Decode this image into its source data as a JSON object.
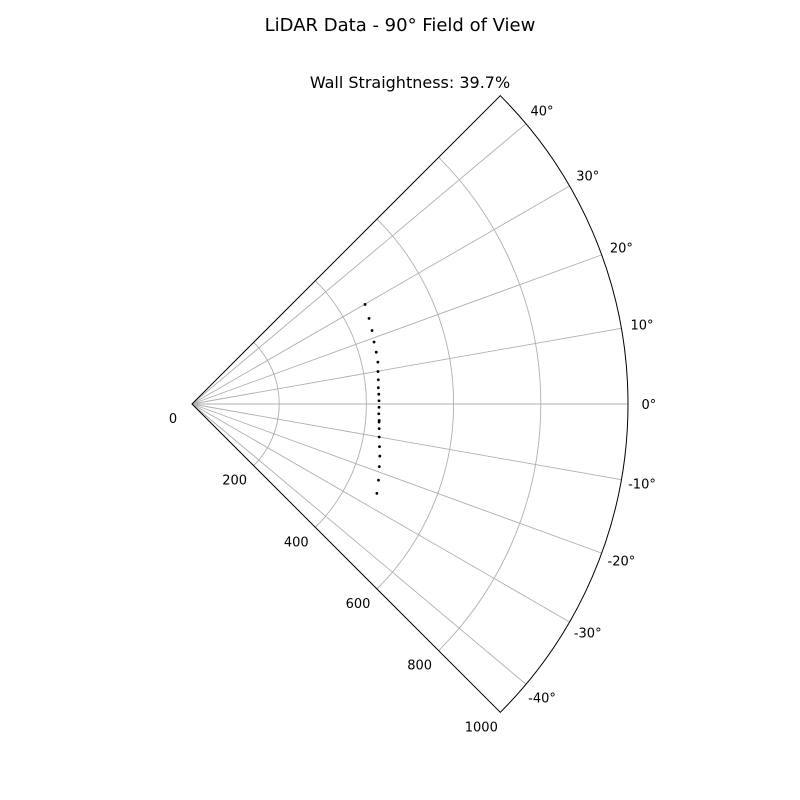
{
  "figure": {
    "title": "LiDAR Data - 90° Field of View"
  },
  "chart_data": {
    "type": "scatter",
    "projection": "polar",
    "title": "Wall Straightness: 39.7%",
    "theta_range_deg": [
      -45,
      45
    ],
    "r_range": [
      0,
      1000
    ],
    "theta_ticks": [
      40,
      30,
      20,
      10,
      0,
      -10,
      -20,
      -30,
      -40
    ],
    "theta_tick_labels": [
      "40°",
      "30°",
      "20°",
      "10°",
      "0°",
      "-10°",
      "-20°",
      "-30°",
      "-40°"
    ],
    "r_ticks": [
      0,
      200,
      400,
      600,
      800,
      1000
    ],
    "r_tick_labels": [
      "0",
      "200",
      "400",
      "600",
      "800",
      "1000"
    ],
    "grid": true,
    "marker_color": "#000000",
    "series": [
      {
        "theta_deg": [
          29.9,
          25.8,
          22.2,
          18.8,
          15.7,
          12.7,
          9.9,
          7.4,
          5.0,
          3.0,
          1.0,
          -1.0,
          -3.0,
          -5.0,
          -5.5,
          -7.5,
          -10.0,
          -12.8,
          -15.5,
          -18.5,
          -22.2,
          -25.8
        ],
        "r": [
          458,
          451,
          446,
          441,
          439,
          437,
          433,
          431,
          429,
          429,
          429,
          429,
          429,
          431,
          431,
          433,
          436,
          441,
          447,
          453,
          462,
          471
        ]
      }
    ]
  }
}
